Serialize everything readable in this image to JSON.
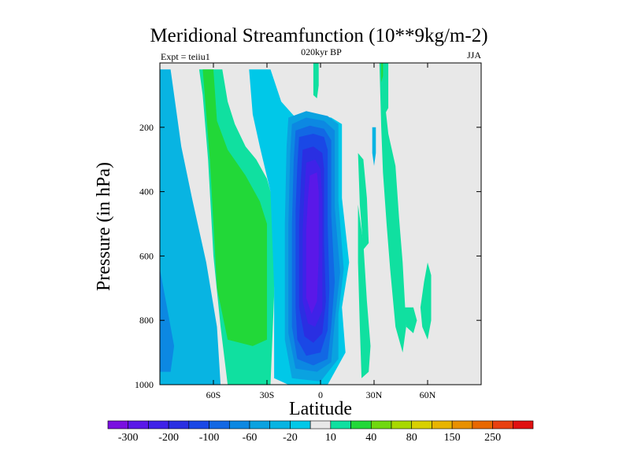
{
  "chart_data": {
    "type": "contour",
    "title": "Meridional Streamfunction (10**9kg/m-2)",
    "left_label": "Expt = teiiu1",
    "center_label": "020kyr BP",
    "right_label": "JJA",
    "xlabel": "Latitude",
    "ylabel": "Pressure (in hPa)",
    "x_ticks": [
      {
        "value": -60,
        "label": "60S"
      },
      {
        "value": -30,
        "label": "30S"
      },
      {
        "value": 0,
        "label": "0"
      },
      {
        "value": 30,
        "label": "30N"
      },
      {
        "value": 60,
        "label": "60N"
      }
    ],
    "y_ticks": [
      {
        "value": 200,
        "label": "200"
      },
      {
        "value": 400,
        "label": "400"
      },
      {
        "value": 600,
        "label": "600"
      },
      {
        "value": 800,
        "label": "800"
      },
      {
        "value": 1000,
        "label": "1000"
      }
    ],
    "xlim": [
      -90,
      90
    ],
    "ylim": [
      0,
      1000
    ],
    "y_inverted": true,
    "background_color": "#e8e8e8",
    "colorbar": {
      "colors": [
        "#7a10e0",
        "#5a18e8",
        "#3f22e8",
        "#2a2fe2",
        "#1a48e6",
        "#1268e4",
        "#0c88e2",
        "#0aa2e0",
        "#08b4e2",
        "#00c8e8",
        "#e8e8e8",
        "#10e0a0",
        "#22d838",
        "#70d810",
        "#a8d800",
        "#d8d000",
        "#e8b400",
        "#e89000",
        "#e86800",
        "#e84010",
        "#e01010"
      ],
      "labels": [
        {
          "boundary": 1,
          "label": "-300"
        },
        {
          "boundary": 3,
          "label": "-200"
        },
        {
          "boundary": 5,
          "label": "-100"
        },
        {
          "boundary": 7,
          "label": "-60"
        },
        {
          "boundary": 9,
          "label": "-20"
        },
        {
          "boundary": 11,
          "label": "10"
        },
        {
          "boundary": 13,
          "label": "40"
        },
        {
          "boundary": 15,
          "label": "80"
        },
        {
          "boundary": 17,
          "label": "150"
        },
        {
          "boundary": 19,
          "label": "250"
        }
      ]
    },
    "regions": [
      {
        "name": "sh-polar-cell",
        "color": "#08b4e2",
        "points": [
          [
            -90,
            20
          ],
          [
            -84,
            20
          ],
          [
            -78,
            260
          ],
          [
            -72,
            420
          ],
          [
            -64,
            620
          ],
          [
            -58,
            820
          ],
          [
            -56,
            1000
          ],
          [
            -90,
            1000
          ]
        ]
      },
      {
        "name": "sh-polar-cell-inner",
        "color": "#0c88e2",
        "points": [
          [
            -90,
            640
          ],
          [
            -86,
            760
          ],
          [
            -82,
            880
          ],
          [
            -84,
            960
          ],
          [
            -90,
            960
          ]
        ]
      },
      {
        "name": "sh-ferrel-outer",
        "color": "#10e0a0",
        "points": [
          [
            -68,
            20
          ],
          [
            -55,
            20
          ],
          [
            -52,
            120
          ],
          [
            -48,
            190
          ],
          [
            -42,
            260
          ],
          [
            -36,
            300
          ],
          [
            -30,
            360
          ],
          [
            -26,
            440
          ],
          [
            -26,
            720
          ],
          [
            -28,
            1000
          ],
          [
            -52,
            1000
          ],
          [
            -56,
            820
          ],
          [
            -60,
            600
          ],
          [
            -63,
            300
          ],
          [
            -66,
            100
          ]
        ]
      },
      {
        "name": "sh-ferrel-inner",
        "color": "#22d838",
        "points": [
          [
            -66,
            20
          ],
          [
            -60,
            20
          ],
          [
            -58,
            180
          ],
          [
            -52,
            270
          ],
          [
            -42,
            350
          ],
          [
            -34,
            430
          ],
          [
            -30,
            500
          ],
          [
            -30,
            860
          ],
          [
            -38,
            880
          ],
          [
            -52,
            860
          ],
          [
            -58,
            700
          ],
          [
            -62,
            300
          ]
        ]
      },
      {
        "name": "tropical-band-edge",
        "color": "#00c8e8",
        "points": [
          [
            -40,
            20
          ],
          [
            -28,
            20
          ],
          [
            -22,
            120
          ],
          [
            -14,
            170
          ],
          [
            -6,
            160
          ],
          [
            6,
            170
          ],
          [
            12,
            190
          ],
          [
            12,
            420
          ],
          [
            16,
            620
          ],
          [
            12,
            760
          ],
          [
            14,
            900
          ],
          [
            4,
            1000
          ],
          [
            -18,
            1000
          ],
          [
            -26,
            980
          ],
          [
            -26,
            700
          ],
          [
            -28,
            400
          ],
          [
            -34,
            260
          ],
          [
            -38,
            160
          ]
        ]
      },
      {
        "name": "hadley-cell-1",
        "color": "#0aa2e0",
        "points": [
          [
            -18,
            170
          ],
          [
            -8,
            150
          ],
          [
            4,
            165
          ],
          [
            10,
            190
          ],
          [
            10,
            430
          ],
          [
            13,
            640
          ],
          [
            10,
            780
          ],
          [
            10,
            920
          ],
          [
            0,
            990
          ],
          [
            -16,
            980
          ],
          [
            -20,
            860
          ],
          [
            -20,
            500
          ],
          [
            -19,
            260
          ]
        ]
      },
      {
        "name": "hadley-cell-2",
        "color": "#0c88e2",
        "points": [
          [
            -16,
            190
          ],
          [
            -8,
            170
          ],
          [
            2,
            180
          ],
          [
            8,
            210
          ],
          [
            8,
            450
          ],
          [
            11,
            650
          ],
          [
            8,
            800
          ],
          [
            6,
            930
          ],
          [
            -2,
            960
          ],
          [
            -14,
            950
          ],
          [
            -18,
            840
          ],
          [
            -18,
            500
          ],
          [
            -17,
            280
          ]
        ]
      },
      {
        "name": "hadley-cell-3",
        "color": "#1268e4",
        "points": [
          [
            -14,
            210
          ],
          [
            -6,
            195
          ],
          [
            2,
            205
          ],
          [
            6,
            240
          ],
          [
            6,
            470
          ],
          [
            8,
            680
          ],
          [
            6,
            820
          ],
          [
            4,
            920
          ],
          [
            -4,
            940
          ],
          [
            -13,
            920
          ],
          [
            -16,
            820
          ],
          [
            -16,
            500
          ],
          [
            -15,
            300
          ]
        ]
      },
      {
        "name": "hadley-cell-4",
        "color": "#1a48e6",
        "points": [
          [
            -12,
            230
          ],
          [
            -4,
            220
          ],
          [
            2,
            230
          ],
          [
            4,
            270
          ],
          [
            4,
            500
          ],
          [
            5,
            700
          ],
          [
            4,
            830
          ],
          [
            0,
            900
          ],
          [
            -8,
            910
          ],
          [
            -13,
            860
          ],
          [
            -14,
            760
          ],
          [
            -14,
            460
          ],
          [
            -13,
            320
          ]
        ]
      },
      {
        "name": "hadley-cell-5",
        "color": "#2a2fe2",
        "points": [
          [
            -10,
            270
          ],
          [
            -4,
            260
          ],
          [
            1,
            280
          ],
          [
            2,
            330
          ],
          [
            2,
            560
          ],
          [
            3,
            740
          ],
          [
            1,
            840
          ],
          [
            -4,
            870
          ],
          [
            -9,
            850
          ],
          [
            -12,
            760
          ],
          [
            -12,
            500
          ],
          [
            -11,
            360
          ]
        ]
      },
      {
        "name": "hadley-cell-6",
        "color": "#3f22e8",
        "points": [
          [
            -8,
            310
          ],
          [
            -3,
            300
          ],
          [
            0,
            330
          ],
          [
            1,
            420
          ],
          [
            1,
            620
          ],
          [
            1,
            770
          ],
          [
            -3,
            820
          ],
          [
            -7,
            810
          ],
          [
            -10,
            740
          ],
          [
            -10,
            520
          ],
          [
            -9,
            400
          ]
        ]
      },
      {
        "name": "hadley-cell-core",
        "color": "#5a18e8",
        "points": [
          [
            -6,
            350
          ],
          [
            -2,
            340
          ],
          [
            -1,
            400
          ],
          [
            -1,
            600
          ],
          [
            -2,
            740
          ],
          [
            -5,
            780
          ],
          [
            -8,
            730
          ],
          [
            -8,
            520
          ],
          [
            -7,
            420
          ]
        ]
      },
      {
        "name": "eq-upper-streak",
        "color": "#10e0a0",
        "points": [
          [
            -4,
            0
          ],
          [
            -1,
            0
          ],
          [
            -1,
            70
          ],
          [
            -2,
            110
          ],
          [
            -4,
            100
          ]
        ]
      },
      {
        "name": "nh-streak-1",
        "color": "#10e0a0",
        "points": [
          [
            21,
            440
          ],
          [
            24,
            560
          ],
          [
            26,
            740
          ],
          [
            28,
            880
          ],
          [
            27,
            960
          ],
          [
            23,
            980
          ],
          [
            22,
            820
          ],
          [
            21,
            620
          ]
        ]
      },
      {
        "name": "nh-streak-2",
        "color": "#10e0a0",
        "points": [
          [
            21,
            280
          ],
          [
            24,
            300
          ],
          [
            26,
            420
          ],
          [
            27,
            560
          ],
          [
            24,
            580
          ],
          [
            22,
            440
          ]
        ]
      },
      {
        "name": "nh-blue-dot",
        "color": "#08b4e2",
        "points": [
          [
            29,
            200
          ],
          [
            31,
            200
          ],
          [
            31,
            280
          ],
          [
            30,
            320
          ],
          [
            29,
            280
          ]
        ]
      },
      {
        "name": "nh-streak-3",
        "color": "#10e0a0",
        "points": [
          [
            33,
            0
          ],
          [
            36,
            0
          ],
          [
            36,
            120
          ],
          [
            38,
            220
          ],
          [
            42,
            320
          ],
          [
            44,
            480
          ],
          [
            46,
            620
          ],
          [
            48,
            820
          ],
          [
            46,
            900
          ],
          [
            42,
            820
          ],
          [
            39,
            640
          ],
          [
            37,
            500
          ],
          [
            35,
            340
          ],
          [
            34,
            200
          ]
        ]
      },
      {
        "name": "nh-streak-4",
        "color": "#10e0a0",
        "points": [
          [
            35,
            0
          ],
          [
            38,
            0
          ],
          [
            38,
            140
          ],
          [
            36,
            160
          ]
        ]
      },
      {
        "name": "nh-streak-5",
        "color": "#10e0a0",
        "points": [
          [
            47,
            760
          ],
          [
            52,
            760
          ],
          [
            54,
            800
          ],
          [
            52,
            840
          ],
          [
            48,
            820
          ]
        ]
      },
      {
        "name": "nh-streak-6",
        "color": "#10e0a0",
        "points": [
          [
            58,
            680
          ],
          [
            60,
            620
          ],
          [
            62,
            660
          ],
          [
            62,
            800
          ],
          [
            60,
            860
          ],
          [
            57,
            820
          ],
          [
            56,
            760
          ]
        ]
      },
      {
        "name": "nh-streak-7",
        "color": "#22d838",
        "points": [
          [
            34,
            0
          ],
          [
            35,
            0
          ],
          [
            35,
            40
          ],
          [
            34,
            60
          ]
        ]
      }
    ]
  }
}
